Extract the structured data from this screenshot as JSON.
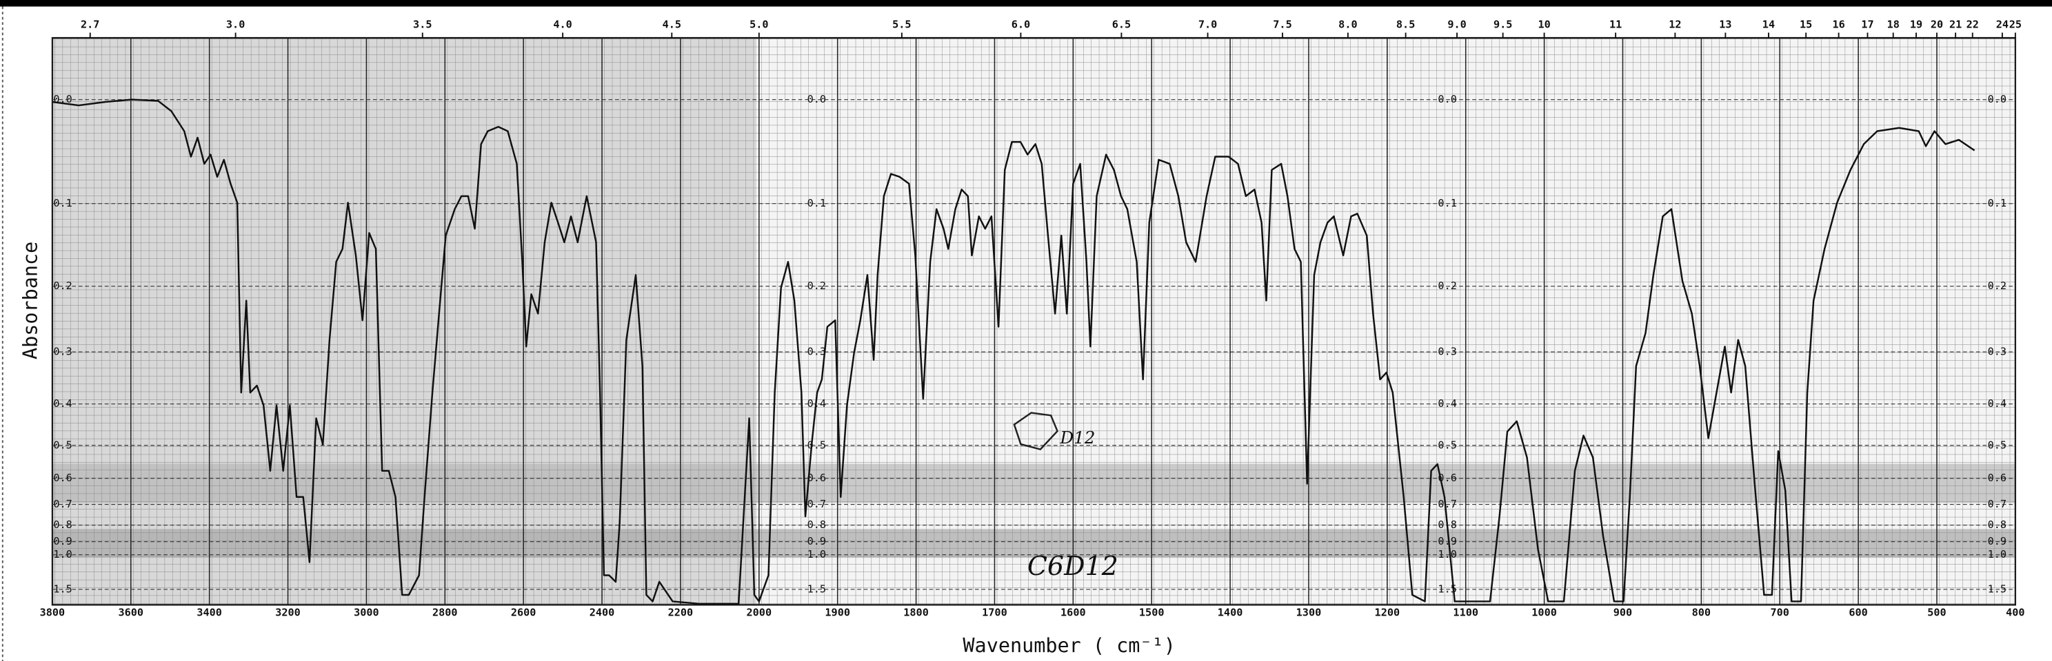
{
  "chart_data": {
    "type": "line",
    "xlabel": "Wavenumber ( cm⁻¹)",
    "ylabel": "Absorbance",
    "annotations": [
      "C6D12",
      "D12"
    ],
    "xlim": [
      3800,
      400
    ],
    "xscale": {
      "break": 2000,
      "compression": 2
    },
    "xticks": [
      3800,
      3600,
      3400,
      3200,
      3000,
      2800,
      2600,
      2400,
      2200,
      2000,
      1900,
      1800,
      1700,
      1600,
      1500,
      1400,
      1300,
      1200,
      1100,
      1000,
      900,
      800,
      700,
      600,
      500,
      400
    ],
    "x2ticks": [
      2.7,
      {
        "value": 3,
        "label": "3.0"
      },
      3.5,
      {
        "value": 4,
        "label": "4.0"
      },
      4.5,
      {
        "value": 5,
        "label": "5.0"
      },
      5.5,
      {
        "value": 6,
        "label": "6.0"
      },
      6.5,
      {
        "value": 7,
        "label": "7.0"
      },
      7.5,
      {
        "value": 8,
        "label": "8.0"
      },
      8.5,
      {
        "value": 9,
        "label": "9.0"
      },
      9.5,
      10,
      11,
      12,
      13,
      14,
      15,
      16,
      17,
      18,
      19,
      20,
      21,
      22,
      24,
      25
    ],
    "ylim": [
      -0.05,
      3
    ],
    "yscale": "transmittance-linear",
    "yticks": [
      {
        "value": 0,
        "label": "0.0"
      },
      0.1,
      0.2,
      0.3,
      0.4,
      0.5,
      0.6,
      0.7,
      0.8,
      0.9,
      {
        "value": 1,
        "label": "1.0"
      },
      1.5
    ],
    "grid": true,
    "series": [
      {
        "name": "C6D12",
        "color": "#111111",
        "x": [
          3800,
          3733,
          3665,
          3598,
          3531,
          3497,
          3464,
          3447,
          3430,
          3413,
          3397,
          3380,
          3363,
          3346,
          3329,
          3319,
          3306,
          3296,
          3279,
          3262,
          3245,
          3229,
          3212,
          3195,
          3178,
          3161,
          3145,
          3128,
          3111,
          3094,
          3077,
          3061,
          3047,
          3027,
          3010,
          2993,
          2976,
          2960,
          2943,
          2926,
          2909,
          2892,
          2866,
          2852,
          2832,
          2815,
          2798,
          2775,
          2758,
          2741,
          2724,
          2708,
          2691,
          2664,
          2640,
          2617,
          2603,
          2593,
          2580,
          2563,
          2546,
          2529,
          2512,
          2496,
          2479,
          2462,
          2439,
          2415,
          2405,
          2395,
          2382,
          2365,
          2355,
          2338,
          2314,
          2297,
          2287,
          2271,
          2254,
          2220,
          2153,
          2052,
          2025,
          2012,
          2000,
          1988,
          1980,
          1972,
          1963,
          1955,
          1946,
          1941,
          1933,
          1926,
          1920,
          1913,
          1903,
          1896,
          1888,
          1879,
          1871,
          1862,
          1854,
          1849,
          1841,
          1832,
          1821,
          1809,
          1801,
          1791,
          1782,
          1774,
          1765,
          1759,
          1750,
          1742,
          1734,
          1729,
          1720,
          1712,
          1704,
          1695,
          1687,
          1678,
          1667,
          1658,
          1648,
          1640,
          1632,
          1623,
          1615,
          1608,
          1600,
          1591,
          1583,
          1578,
          1570,
          1558,
          1548,
          1539,
          1531,
          1519,
          1511,
          1503,
          1491,
          1477,
          1466,
          1456,
          1444,
          1430,
          1419,
          1402,
          1390,
          1380,
          1369,
          1360,
          1354,
          1347,
          1335,
          1327,
          1318,
          1310,
          1302,
          1293,
          1285,
          1276,
          1268,
          1256,
          1246,
          1238,
          1226,
          1218,
          1209,
          1201,
          1193,
          1179,
          1168,
          1152,
          1144,
          1136,
          1127,
          1114,
          1094,
          1069,
          1057,
          1047,
          1035,
          1022,
          1008,
          995,
          975,
          961,
          950,
          938,
          925,
          911,
          899,
          891,
          883,
          871,
          861,
          849,
          838,
          824,
          812,
          802,
          791,
          782,
          770,
          762,
          753,
          744,
          732,
          720,
          710,
          702,
          693,
          685,
          673,
          665,
          657,
          643,
          627,
          610,
          593,
          576,
          548,
          523,
          514,
          503,
          489,
          472,
          452
        ],
        "values": [
          0.002,
          0.005,
          0.002,
          0,
          0.001,
          0.01,
          0.028,
          0.052,
          0.034,
          0.059,
          0.05,
          0.072,
          0.055,
          0.079,
          0.099,
          0.376,
          0.22,
          0.376,
          0.362,
          0.403,
          0.575,
          0.403,
          0.575,
          0.403,
          0.669,
          0.669,
          1.069,
          0.432,
          0.498,
          0.28,
          0.168,
          0.152,
          0.099,
          0.16,
          0.249,
          0.133,
          0.152,
          0.575,
          0.575,
          0.669,
          1.685,
          1.685,
          1.226,
          0.669,
          0.376,
          0.239,
          0.136,
          0.106,
          0.092,
          0.092,
          0.128,
          0.04,
          0.028,
          0.024,
          0.028,
          0.059,
          0.168,
          0.291,
          0.211,
          0.239,
          0.144,
          0.099,
          0.121,
          0.144,
          0.114,
          0.144,
          0.092,
          0.144,
          0.376,
          1.226,
          1.226,
          1.332,
          0.789,
          0.28,
          0.185,
          0.325,
          1.685,
          2.11,
          1.332,
          2.11,
          2.5,
          2.5,
          0.432,
          1.685,
          2.11,
          1.226,
          0.376,
          0.202,
          0.168,
          0.22,
          0.376,
          0.755,
          0.498,
          0.376,
          0.35,
          0.259,
          0.249,
          0.669,
          0.403,
          0.302,
          0.249,
          0.185,
          0.314,
          0.185,
          0.092,
          0.069,
          0.072,
          0.079,
          0.16,
          0.389,
          0.168,
          0.106,
          0.128,
          0.152,
          0.106,
          0.085,
          0.092,
          0.16,
          0.114,
          0.128,
          0.114,
          0.259,
          0.065,
          0.038,
          0.038,
          0.05,
          0.04,
          0.059,
          0.136,
          0.239,
          0.136,
          0.239,
          0.079,
          0.059,
          0.168,
          0.291,
          0.092,
          0.05,
          0.065,
          0.092,
          0.106,
          0.168,
          0.35,
          0.121,
          0.055,
          0.059,
          0.092,
          0.144,
          0.168,
          0.092,
          0.052,
          0.052,
          0.059,
          0.092,
          0.085,
          0.121,
          0.22,
          0.065,
          0.059,
          0.092,
          0.152,
          0.168,
          0.619,
          0.185,
          0.144,
          0.121,
          0.114,
          0.16,
          0.114,
          0.111,
          0.136,
          0.239,
          0.35,
          0.337,
          0.376,
          0.669,
          1.685,
          2.11,
          0.575,
          0.554,
          0.669,
          2.11,
          2.11,
          2.11,
          0.755,
          0.464,
          0.439,
          0.534,
          0.954,
          2.11,
          2.11,
          0.575,
          0.474,
          0.534,
          0.863,
          2.11,
          2.11,
          0.669,
          0.325,
          0.269,
          0.185,
          0.114,
          0.106,
          0.193,
          0.239,
          0.325,
          0.481,
          0.389,
          0.291,
          0.376,
          0.28,
          0.325,
          0.619,
          1.685,
          1.685,
          0.516,
          0.643,
          2.11,
          2.11,
          0.376,
          0.22,
          0.152,
          0.099,
          0.065,
          0.04,
          0.028,
          0.025,
          0.028,
          0.042,
          0.028,
          0.04,
          0.036,
          0.046
        ]
      }
    ]
  }
}
